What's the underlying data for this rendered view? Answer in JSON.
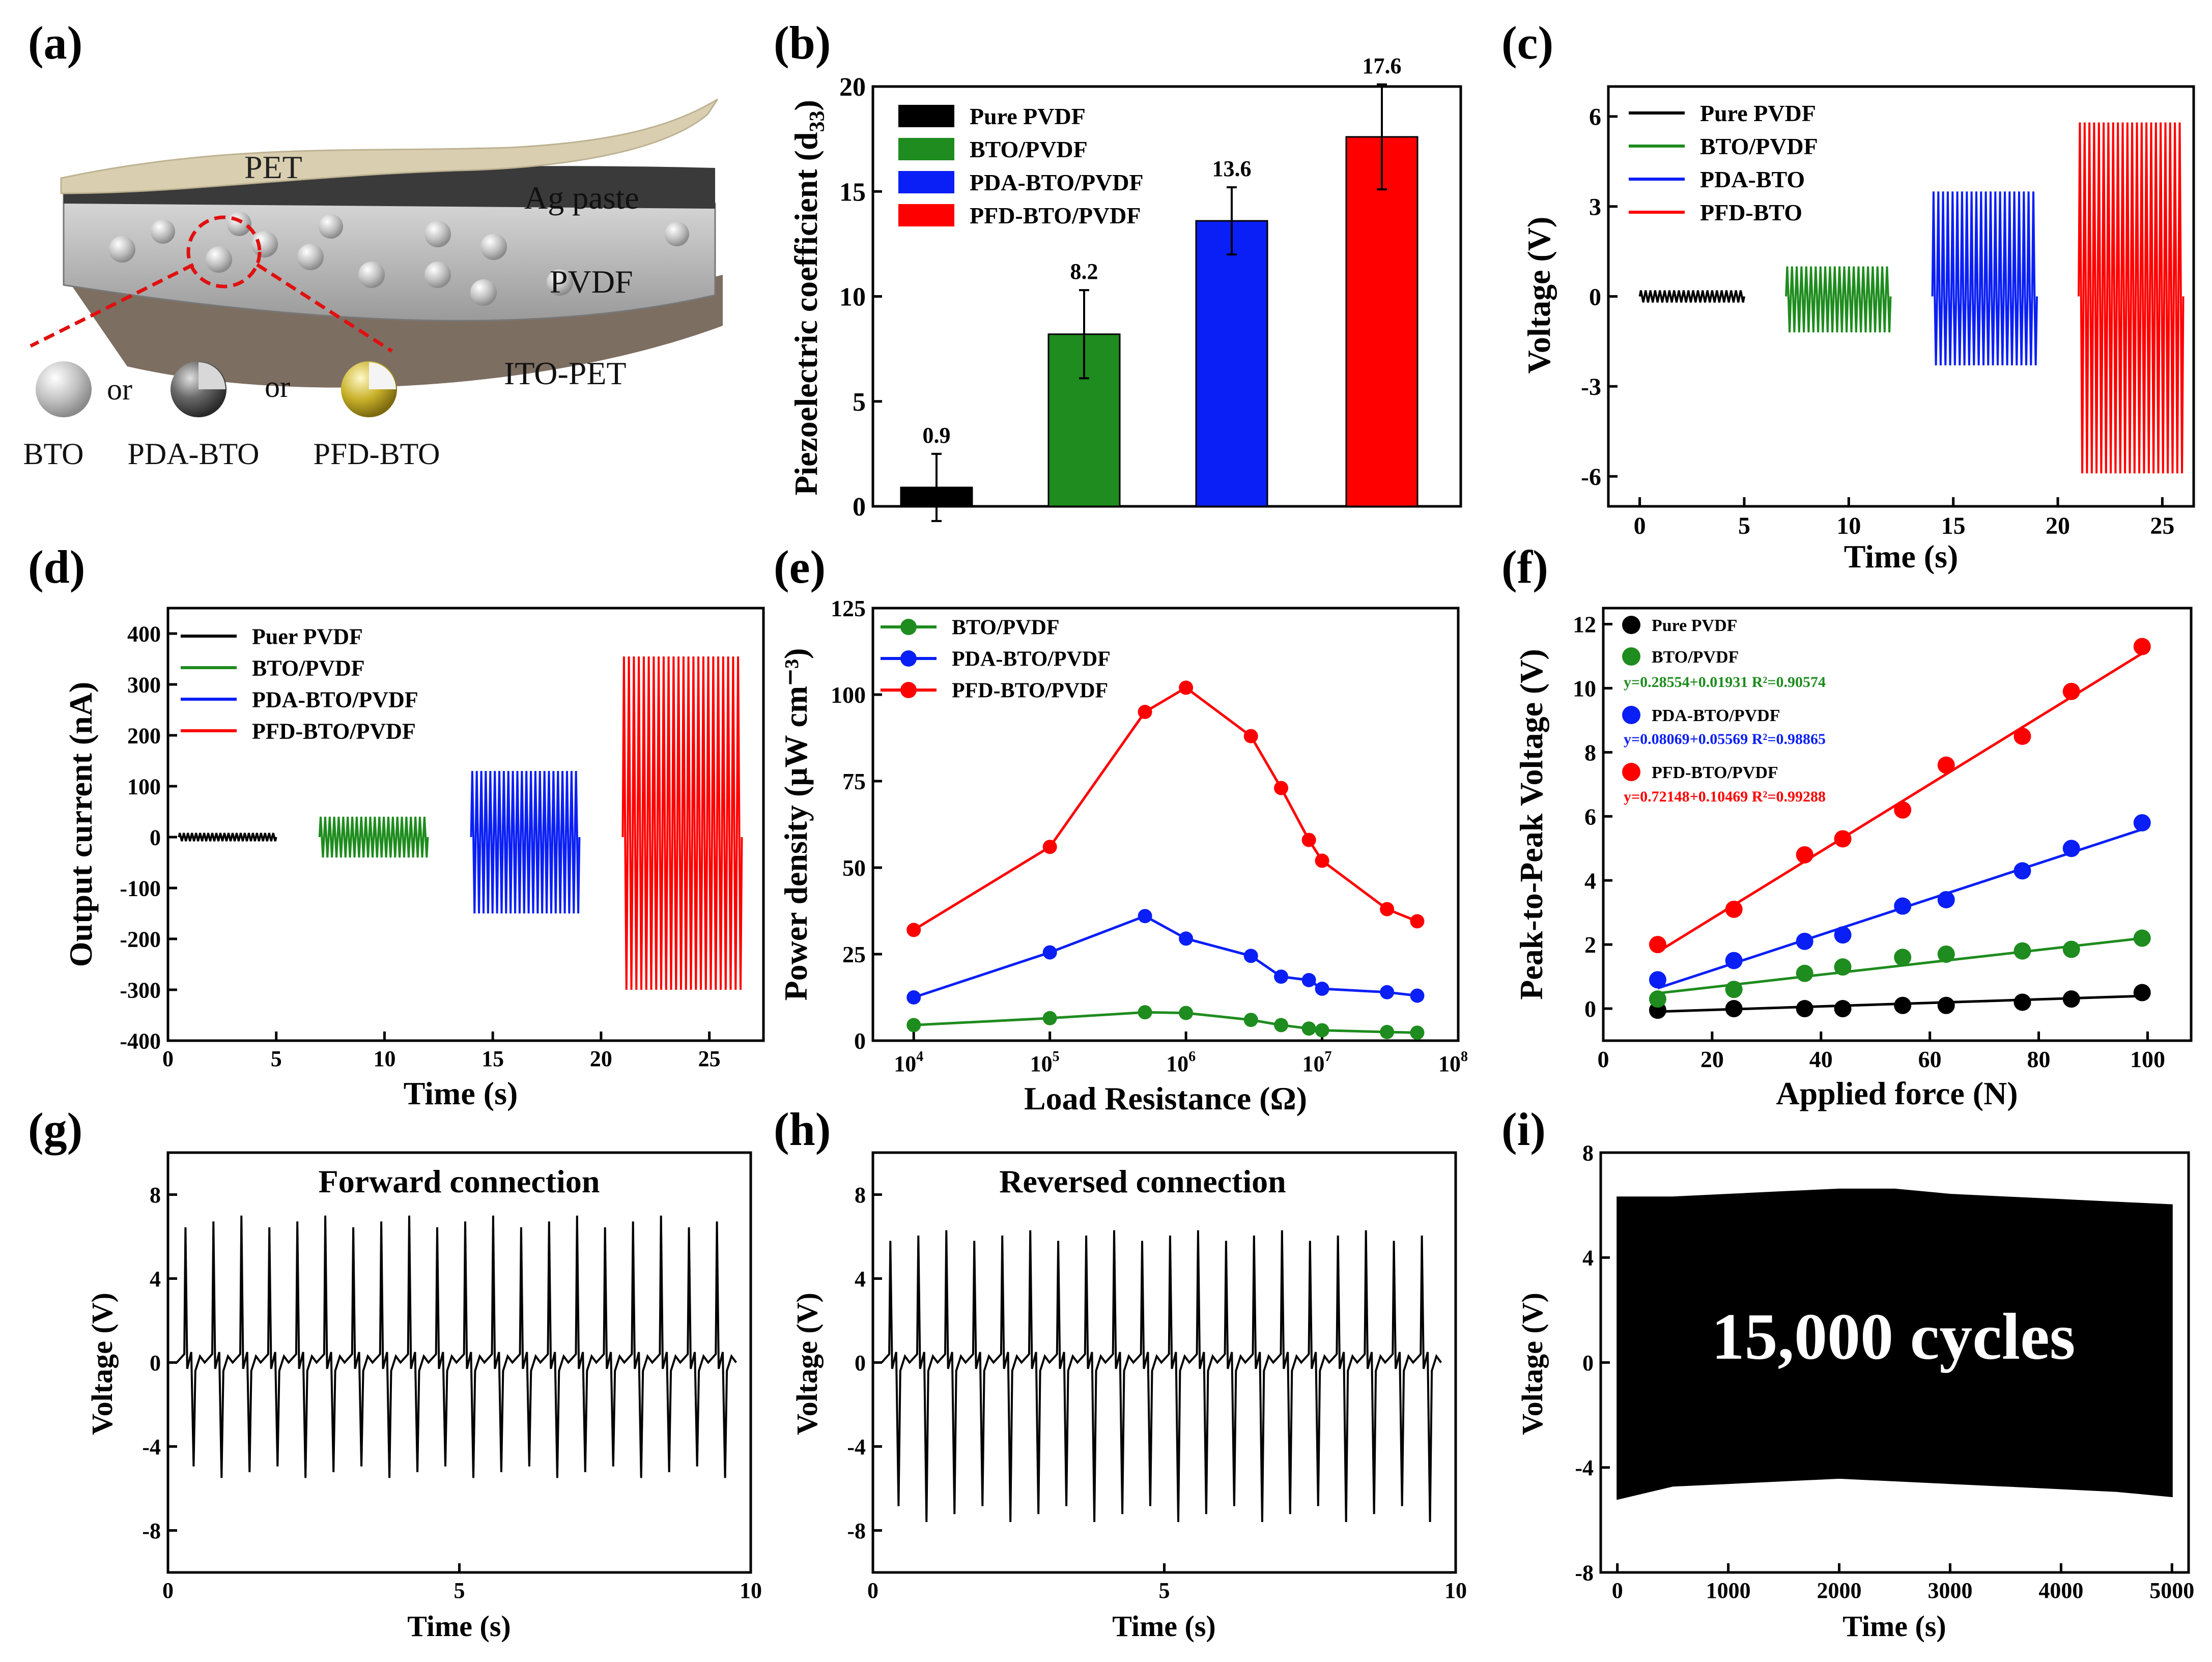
{
  "panel_labels": [
    "(a)",
    "(b)",
    "(c)",
    "(d)",
    "(e)",
    "(f)",
    "(g)",
    "(h)",
    "(i)"
  ],
  "schematic": {
    "layers": [
      "PET",
      "Ag paste",
      "PVDF",
      "ITO-PET"
    ],
    "particles": [
      "BTO",
      "PDA-BTO",
      "PFD-BTO"
    ],
    "connector": "or"
  },
  "colors": {
    "black": "#000000",
    "green": "#1e8c1e",
    "blue": "#0a1ff5",
    "red": "#ff0000"
  },
  "chart_data": [
    {
      "id": "b",
      "type": "bar",
      "categories": [
        "Pure PVDF",
        "BTO/PVDF",
        "PDA-BTO/PVDF",
        "PFD-BTO/PVDF"
      ],
      "values": [
        0.9,
        8.2,
        13.6,
        17.6
      ],
      "value_labels": [
        "0.9",
        "8.2",
        "13.6",
        "17.6"
      ],
      "errors": [
        1.6,
        2.1,
        1.6,
        2.5
      ],
      "ylabel_main": "Piezoelectric coefficient (d",
      "ylabel_sub": "33",
      "ylabel_end": ")",
      "ylim": [
        0,
        20
      ],
      "yticks": [
        0,
        5,
        10,
        15,
        20
      ],
      "ytick_labels": [
        "0",
        "5",
        "10",
        "15",
        "20"
      ],
      "legend": [
        "Pure PVDF",
        "BTO/PVDF",
        "PDA-BTO/PVDF",
        "PFD-BTO/PVDF"
      ]
    },
    {
      "id": "c",
      "type": "line",
      "xlabel": "Time (s)",
      "ylabel": "Voltage (V)",
      "xlim": [
        -1.5,
        26.5
      ],
      "ylim": [
        -7,
        7
      ],
      "xticks": [
        0,
        5,
        10,
        15,
        20,
        25
      ],
      "xtick_labels": [
        "0",
        "5",
        "10",
        "15",
        "20",
        "25"
      ],
      "yticks": [
        -6,
        -3,
        0,
        3,
        6
      ],
      "ytick_labels": [
        "-6",
        "-3",
        "0",
        "3",
        "6"
      ],
      "legend": [
        "Pure PVDF",
        "BTO/PVDF",
        "PDA-BTO",
        "PFD-BTO"
      ],
      "series": [
        {
          "name": "Pure PVDF",
          "t_start": 0,
          "t_end": 5,
          "amp_pos": 0.2,
          "amp_neg": -0.2
        },
        {
          "name": "BTO/PVDF",
          "t_start": 7,
          "t_end": 12,
          "amp_pos": 1.0,
          "amp_neg": -1.2
        },
        {
          "name": "PDA-BTO",
          "t_start": 14,
          "t_end": 19,
          "amp_pos": 3.5,
          "amp_neg": -2.3
        },
        {
          "name": "PFD-BTO",
          "t_start": 21,
          "t_end": 26,
          "amp_pos": 5.8,
          "amp_neg": -5.9
        }
      ]
    },
    {
      "id": "d",
      "type": "line",
      "xlabel": "Time (s)",
      "ylabel": "Output current (nA)",
      "xlim": [
        0,
        27.5
      ],
      "ylim": [
        -400,
        450
      ],
      "xticks": [
        0,
        5,
        10,
        15,
        20,
        25
      ],
      "xtick_labels": [
        "0",
        "5",
        "10",
        "15",
        "20",
        "25"
      ],
      "yticks": [
        -400,
        -300,
        -200,
        -100,
        0,
        100,
        200,
        300,
        400
      ],
      "ytick_labels": [
        "-400",
        "-300",
        "-200",
        "-100",
        "0",
        "100",
        "200",
        "300",
        "400"
      ],
      "legend": [
        "Puer PVDF",
        "BTO/PVDF",
        "PDA-BTO/PVDF",
        "PFD-BTO/PVDF"
      ],
      "series": [
        {
          "name": "Puer PVDF",
          "t_start": 0.5,
          "t_end": 5,
          "amp_pos": 8,
          "amp_neg": -8
        },
        {
          "name": "BTO/PVDF",
          "t_start": 7,
          "t_end": 12,
          "amp_pos": 40,
          "amp_neg": -40
        },
        {
          "name": "PDA-BTO/PVDF",
          "t_start": 14,
          "t_end": 19,
          "amp_pos": 130,
          "amp_neg": -150
        },
        {
          "name": "PFD-BTO/PVDF",
          "t_start": 21,
          "t_end": 26.5,
          "amp_pos": 355,
          "amp_neg": -300
        }
      ]
    },
    {
      "id": "e",
      "type": "scatter",
      "xlabel": "Load Resistance (Ω)",
      "ylabel": "Power density (μW cm⁻³)",
      "xscale": "log",
      "xlim_log10": [
        3.7,
        8
      ],
      "ylim": [
        0,
        125
      ],
      "xtick_exponents": [
        4,
        5,
        6,
        7,
        8
      ],
      "yticks": [
        0,
        25,
        50,
        75,
        100,
        125
      ],
      "ytick_labels": [
        "0",
        "25",
        "50",
        "75",
        "100",
        "125"
      ],
      "legend": [
        "BTO/PVDF",
        "PDA-BTO/PVDF",
        "PFD-BTO/PVDF"
      ],
      "series": [
        {
          "name": "BTO/PVDF",
          "x": [
            10000,
            100000,
            500000,
            1000000,
            3000000,
            5000000,
            8000000,
            10000000,
            30000000,
            50000000
          ],
          "y": [
            4.5,
            6.5,
            8.2,
            8.0,
            6.0,
            4.5,
            3.5,
            3.0,
            2.5,
            2.3
          ]
        },
        {
          "name": "PDA-BTO/PVDF",
          "x": [
            10000,
            100000,
            500000,
            1000000,
            3000000,
            5000000,
            8000000,
            10000000,
            30000000,
            50000000
          ],
          "y": [
            12.5,
            25.5,
            36.0,
            29.5,
            24.5,
            18.5,
            17.5,
            15.0,
            14.0,
            13.0
          ]
        },
        {
          "name": "PFD-BTO/PVDF",
          "x": [
            10000,
            100000,
            500000,
            1000000,
            3000000,
            5000000,
            8000000,
            10000000,
            30000000,
            50000000
          ],
          "y": [
            32.0,
            56.0,
            95.0,
            102.0,
            88.0,
            73.0,
            58.0,
            52.0,
            38.0,
            34.5
          ]
        }
      ]
    },
    {
      "id": "f",
      "type": "scatter",
      "xlabel": "Applied force (N)",
      "ylabel": "Peak-to-Peak Voltage (V)",
      "xlim": [
        0,
        108
      ],
      "ylim": [
        -1,
        12.5
      ],
      "xticks": [
        0,
        20,
        40,
        60,
        80,
        100
      ],
      "xtick_labels": [
        "0",
        "20",
        "40",
        "60",
        "80",
        "100"
      ],
      "yticks": [
        0,
        2,
        4,
        6,
        8,
        10,
        12
      ],
      "ytick_labels": [
        "0",
        "2",
        "4",
        "6",
        "8",
        "10",
        "12"
      ],
      "legend": [
        "Pure PVDF",
        "BTO/PVDF",
        "PDA-BTO/PVDF",
        "PFD-BTO/PVDF"
      ],
      "fits": [
        "y=0.28554+0.01931 R²=0.90574",
        "y=0.08069+0.05569 R²=0.98865",
        "y=0.72148+0.10469 R²=0.99288"
      ],
      "series": [
        {
          "name": "Pure PVDF",
          "x": [
            10,
            24,
            37,
            44,
            55,
            63,
            77,
            86,
            99
          ],
          "y": [
            -0.05,
            0.0,
            0.0,
            0.0,
            0.1,
            0.1,
            0.2,
            0.3,
            0.5
          ],
          "fit": [
            -0.15,
            0.0055
          ]
        },
        {
          "name": "BTO/PVDF",
          "x": [
            10,
            24,
            37,
            44,
            55,
            63,
            77,
            86,
            99
          ],
          "y": [
            0.3,
            0.6,
            1.1,
            1.3,
            1.6,
            1.7,
            1.8,
            1.85,
            2.2
          ],
          "fit": [
            0.28554,
            0.01931
          ]
        },
        {
          "name": "PDA-BTO/PVDF",
          "x": [
            10,
            24,
            37,
            44,
            55,
            63,
            77,
            86,
            99
          ],
          "y": [
            0.9,
            1.5,
            2.1,
            2.3,
            3.2,
            3.4,
            4.3,
            5.0,
            5.8
          ],
          "fit": [
            0.08069,
            0.05569
          ]
        },
        {
          "name": "PFD-BTO/PVDF",
          "x": [
            10,
            24,
            37,
            44,
            55,
            63,
            77,
            86,
            99
          ],
          "y": [
            2.0,
            3.1,
            4.8,
            5.3,
            6.2,
            7.6,
            8.5,
            9.9,
            11.3
          ],
          "fit": [
            0.72148,
            0.10469
          ]
        }
      ]
    },
    {
      "id": "g",
      "type": "line",
      "title": "Forward connection",
      "xlabel": "Time (s)",
      "ylabel": "Voltage (V)",
      "xlim": [
        0,
        10
      ],
      "ylim": [
        -10,
        10
      ],
      "xticks": [
        0,
        5,
        10
      ],
      "xtick_labels": [
        "0",
        "5",
        "10"
      ],
      "yticks": [
        -8,
        -4,
        0,
        4,
        8
      ],
      "ytick_labels": [
        "-8",
        "-4",
        "0",
        "4",
        "8"
      ],
      "peaks": 20,
      "amp_pos": 7.0,
      "amp_neg": -5.5
    },
    {
      "id": "h",
      "type": "line",
      "title": "Reversed connection",
      "xlabel": "Time (s)",
      "ylabel": "Voltage (V)",
      "xlim": [
        0,
        10
      ],
      "ylim": [
        -10,
        10
      ],
      "xticks": [
        0,
        5,
        10
      ],
      "xtick_labels": [
        "0",
        "5",
        "10"
      ],
      "yticks": [
        -8,
        -4,
        0,
        4,
        8
      ],
      "ytick_labels": [
        "-8",
        "-4",
        "0",
        "4",
        "8"
      ],
      "peaks": 20,
      "amp_pos": 6.3,
      "amp_neg": -7.6
    },
    {
      "id": "i",
      "type": "area",
      "annotation": "15,000 cycles",
      "xlabel": "Time (s)",
      "ylabel": "Voltage (V)",
      "xlim": [
        -150,
        5150
      ],
      "ylim": [
        -8,
        8
      ],
      "xticks": [
        0,
        1000,
        2000,
        3000,
        4000,
        5000
      ],
      "xtick_labels": [
        "0",
        "1000",
        "2000",
        "3000",
        "4000",
        "5000"
      ],
      "yticks": [
        -8,
        -4,
        0,
        4,
        8
      ],
      "ytick_labels": [
        "-8",
        "-4",
        "0",
        "4",
        "8"
      ],
      "envelope_x": [
        0,
        500,
        1000,
        1500,
        2000,
        2500,
        3000,
        3500,
        4000,
        4500,
        5000
      ],
      "envelope_top": [
        6.3,
        6.3,
        6.4,
        6.5,
        6.6,
        6.6,
        6.4,
        6.3,
        6.2,
        6.1,
        6.0
      ],
      "envelope_bottom": [
        -5.2,
        -4.7,
        -4.6,
        -4.5,
        -4.4,
        -4.5,
        -4.6,
        -4.7,
        -4.8,
        -4.9,
        -5.1
      ]
    }
  ]
}
